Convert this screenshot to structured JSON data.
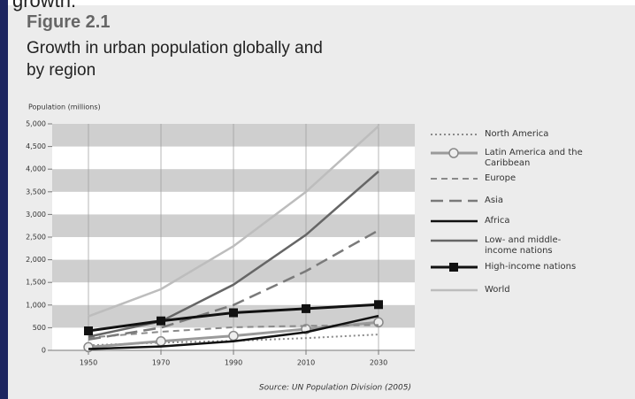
{
  "page_fragment": "growth.",
  "chart_data": {
    "type": "line",
    "title": "Figure 2.1",
    "subtitle": "Growth in urban population globally and by region",
    "y_label": "Population (millions)",
    "source": "Source: UN Population Division (2005)",
    "x": [
      1950,
      1970,
      1990,
      2010,
      2030
    ],
    "xlim": [
      1940,
      2040
    ],
    "xticks": [
      1950,
      1970,
      1990,
      2010,
      2030
    ],
    "ylim": [
      0,
      5000
    ],
    "yticks": [
      0,
      500,
      {
        "value": 1000,
        "label": "1,000"
      },
      {
        "value": 1500,
        "label": "1,500"
      },
      {
        "value": 2000,
        "label": "2,000"
      },
      {
        "value": 2500,
        "label": "2,500"
      },
      {
        "value": 3000,
        "label": "3,000"
      },
      {
        "value": 3500,
        "label": "3,500"
      },
      {
        "value": 4000,
        "label": "4,000"
      },
      {
        "value": 4500,
        "label": "4,500"
      },
      {
        "value": 5000,
        "label": "5,000"
      }
    ],
    "grid": "bands",
    "series": [
      {
        "name": "North America",
        "color": "#8a8a8a",
        "dash": "2 3",
        "width": 2,
        "values": [
          110,
          170,
          210,
          270,
          350
        ]
      },
      {
        "name": "Latin America and the Caribbean",
        "color": "#9a9a9a",
        "width": 3,
        "marker": "circle",
        "values": [
          70,
          200,
          320,
          470,
          620
        ]
      },
      {
        "name": "Europe",
        "color": "#8a8a8a",
        "dash": "7 5",
        "width": 2,
        "values": [
          280,
          410,
          510,
          540,
          560
        ]
      },
      {
        "name": "Asia",
        "color": "#7a7a7a",
        "dash": "14 7",
        "width": 2.5,
        "values": [
          240,
          500,
          1000,
          1750,
          2650
        ]
      },
      {
        "name": "Africa",
        "color": "#111111",
        "width": 2.5,
        "values": [
          30,
          85,
          200,
          400,
          760
        ]
      },
      {
        "name": "Low- and middle-income nations",
        "color": "#666666",
        "width": 2.5,
        "values": [
          300,
          640,
          1450,
          2550,
          3950
        ]
      },
      {
        "name": "High-income nations",
        "color": "#111111",
        "width": 3,
        "marker": "square",
        "values": [
          430,
          650,
          830,
          920,
          1010
        ]
      },
      {
        "name": "World",
        "color": "#bdbdbd",
        "width": 2.5,
        "values": [
          750,
          1350,
          2300,
          3500,
          4950
        ]
      }
    ]
  }
}
